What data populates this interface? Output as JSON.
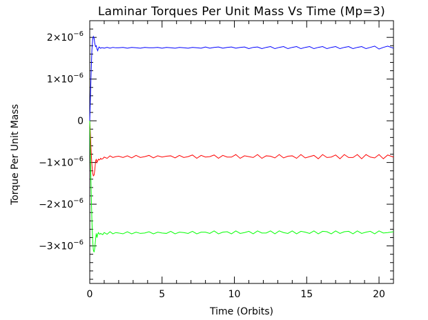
{
  "chart_data": {
    "type": "line",
    "title": "Laminar Torques Per Unit Mass Vs Time (Mp=3)",
    "xlabel": "Time (Orbits)",
    "ylabel": "Torque Per Unit Mass",
    "xlim": [
      0,
      21
    ],
    "ylim": [
      -3.9e-06,
      2.4e-06
    ],
    "grid": false,
    "legend": "none",
    "x_ticks": [
      {
        "value": 0,
        "label": "0"
      },
      {
        "value": 5,
        "label": "5"
      },
      {
        "value": 10,
        "label": "10"
      },
      {
        "value": 15,
        "label": "15"
      },
      {
        "value": 20,
        "label": "20"
      }
    ],
    "y_ticks": [
      {
        "value": 2e-06,
        "label": "2×10",
        "exp": "−6"
      },
      {
        "value": 1e-06,
        "label": "1×10",
        "exp": "−6"
      },
      {
        "value": 0,
        "label": "0",
        "exp": ""
      },
      {
        "value": -1e-06,
        "label": "−1×10",
        "exp": "−6"
      },
      {
        "value": -2e-06,
        "label": "−2×10",
        "exp": "−6"
      },
      {
        "value": -3e-06,
        "label": "−3×10",
        "exp": "−6"
      }
    ],
    "x": [
      0,
      0.05,
      0.1,
      0.15,
      0.2,
      0.25,
      0.3,
      0.35,
      0.4,
      0.45,
      0.5,
      0.55,
      0.6,
      0.65,
      0.7,
      0.75,
      0.8,
      0.9,
      1.0,
      1.2,
      1.4,
      1.6,
      1.8,
      2.0,
      2.3,
      2.6,
      2.9,
      3.2,
      3.5,
      3.8,
      4.1,
      4.4,
      4.7,
      5.0,
      5.3,
      5.6,
      5.9,
      6.2,
      6.5,
      6.8,
      7.1,
      7.4,
      7.7,
      8.0,
      8.3,
      8.6,
      8.9,
      9.2,
      9.5,
      9.8,
      10.1,
      10.4,
      10.7,
      11.0,
      11.3,
      11.6,
      11.9,
      12.2,
      12.5,
      12.8,
      13.1,
      13.4,
      13.7,
      14.0,
      14.3,
      14.6,
      14.9,
      15.2,
      15.5,
      15.8,
      16.1,
      16.4,
      16.7,
      17.0,
      17.3,
      17.6,
      17.9,
      18.2,
      18.5,
      18.8,
      19.1,
      19.4,
      19.7,
      20.0,
      20.3,
      20.6,
      21.0
    ],
    "series": [
      {
        "color": "#0000ff",
        "values": [
          0,
          0.6,
          1.2,
          1.7,
          1.95,
          2.02,
          1.98,
          1.85,
          1.78,
          1.8,
          1.72,
          1.68,
          1.74,
          1.77,
          1.75,
          1.74,
          1.75,
          1.75,
          1.74,
          1.76,
          1.74,
          1.76,
          1.75,
          1.75,
          1.76,
          1.74,
          1.76,
          1.75,
          1.74,
          1.76,
          1.75,
          1.75,
          1.76,
          1.74,
          1.76,
          1.75,
          1.74,
          1.76,
          1.75,
          1.74,
          1.76,
          1.75,
          1.74,
          1.77,
          1.74,
          1.76,
          1.77,
          1.74,
          1.76,
          1.77,
          1.74,
          1.76,
          1.77,
          1.73,
          1.76,
          1.77,
          1.73,
          1.76,
          1.78,
          1.73,
          1.76,
          1.78,
          1.73,
          1.76,
          1.78,
          1.73,
          1.76,
          1.78,
          1.73,
          1.76,
          1.78,
          1.73,
          1.76,
          1.78,
          1.73,
          1.76,
          1.78,
          1.73,
          1.76,
          1.78,
          1.73,
          1.76,
          1.79,
          1.72,
          1.76,
          1.79,
          1.74
        ]
      },
      {
        "color": "#ff0000",
        "values": [
          0,
          -0.35,
          -0.75,
          -1.05,
          -1.25,
          -1.32,
          -1.3,
          -1.18,
          -0.98,
          -0.92,
          -1.0,
          -0.96,
          -0.92,
          -0.94,
          -0.93,
          -0.9,
          -0.92,
          -0.91,
          -0.87,
          -0.9,
          -0.84,
          -0.88,
          -0.86,
          -0.85,
          -0.88,
          -0.84,
          -0.89,
          -0.83,
          -0.88,
          -0.86,
          -0.83,
          -0.89,
          -0.84,
          -0.87,
          -0.85,
          -0.84,
          -0.89,
          -0.83,
          -0.88,
          -0.86,
          -0.82,
          -0.9,
          -0.83,
          -0.87,
          -0.86,
          -0.82,
          -0.9,
          -0.83,
          -0.87,
          -0.87,
          -0.81,
          -0.9,
          -0.84,
          -0.86,
          -0.88,
          -0.81,
          -0.9,
          -0.84,
          -0.85,
          -0.89,
          -0.81,
          -0.89,
          -0.85,
          -0.84,
          -0.9,
          -0.81,
          -0.89,
          -0.86,
          -0.83,
          -0.91,
          -0.81,
          -0.88,
          -0.87,
          -0.82,
          -0.91,
          -0.81,
          -0.88,
          -0.88,
          -0.81,
          -0.91,
          -0.81,
          -0.87,
          -0.89,
          -0.81,
          -0.91,
          -0.82,
          -0.87
        ]
      },
      {
        "color": "#00ff00",
        "values": [
          0,
          -0.9,
          -1.7,
          -2.4,
          -2.85,
          -3.1,
          -3.15,
          -3.05,
          -2.85,
          -2.7,
          -2.8,
          -2.72,
          -2.68,
          -2.71,
          -2.72,
          -2.7,
          -2.71,
          -2.73,
          -2.68,
          -2.72,
          -2.66,
          -2.71,
          -2.68,
          -2.69,
          -2.71,
          -2.66,
          -2.71,
          -2.67,
          -2.7,
          -2.69,
          -2.66,
          -2.71,
          -2.67,
          -2.69,
          -2.7,
          -2.65,
          -2.71,
          -2.67,
          -2.68,
          -2.7,
          -2.65,
          -2.71,
          -2.67,
          -2.67,
          -2.7,
          -2.64,
          -2.71,
          -2.67,
          -2.66,
          -2.71,
          -2.64,
          -2.7,
          -2.68,
          -2.65,
          -2.71,
          -2.64,
          -2.69,
          -2.69,
          -2.64,
          -2.71,
          -2.64,
          -2.68,
          -2.7,
          -2.64,
          -2.71,
          -2.65,
          -2.67,
          -2.7,
          -2.64,
          -2.71,
          -2.65,
          -2.66,
          -2.71,
          -2.64,
          -2.7,
          -2.66,
          -2.65,
          -2.71,
          -2.64,
          -2.7,
          -2.67,
          -2.65,
          -2.71,
          -2.64,
          -2.69,
          -2.68,
          -2.66
        ]
      }
    ],
    "series_value_unit": "1e-6"
  }
}
